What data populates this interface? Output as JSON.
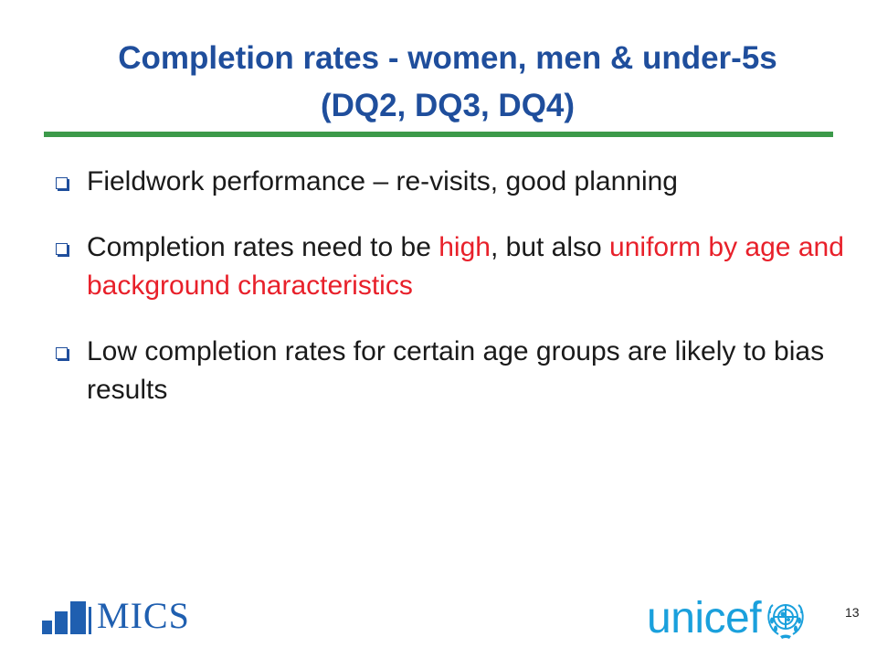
{
  "title": {
    "line1": "Completion rates  - women, men & under-5s",
    "line2": "(DQ2, DQ3, DQ4)"
  },
  "bullets": [
    {
      "part1": "Fieldwork performance – re-visits, good planning"
    },
    {
      "part1": "Completion rates need to be ",
      "highlight1": "high",
      "part2": ", but also ",
      "highlight2": "uniform by age and background characteristics"
    },
    {
      "part1": "Low completion rates for certain age groups are likely to bias results"
    }
  ],
  "footer": {
    "mics_logo_text": "MICS",
    "unicef_logo_text": "unicef",
    "page_number": "13"
  },
  "colors": {
    "title": "#1f4e9c",
    "rule": "#3c9a4a",
    "highlight": "#e8202a",
    "mics_blue": "#1f5fb0",
    "unicef_cyan": "#1aa0dc"
  },
  "icons": {
    "bullet": "hollow-square-bullet-icon",
    "mics": "mics-bars-logo-icon",
    "unicef": "unicef-emblem-icon"
  }
}
